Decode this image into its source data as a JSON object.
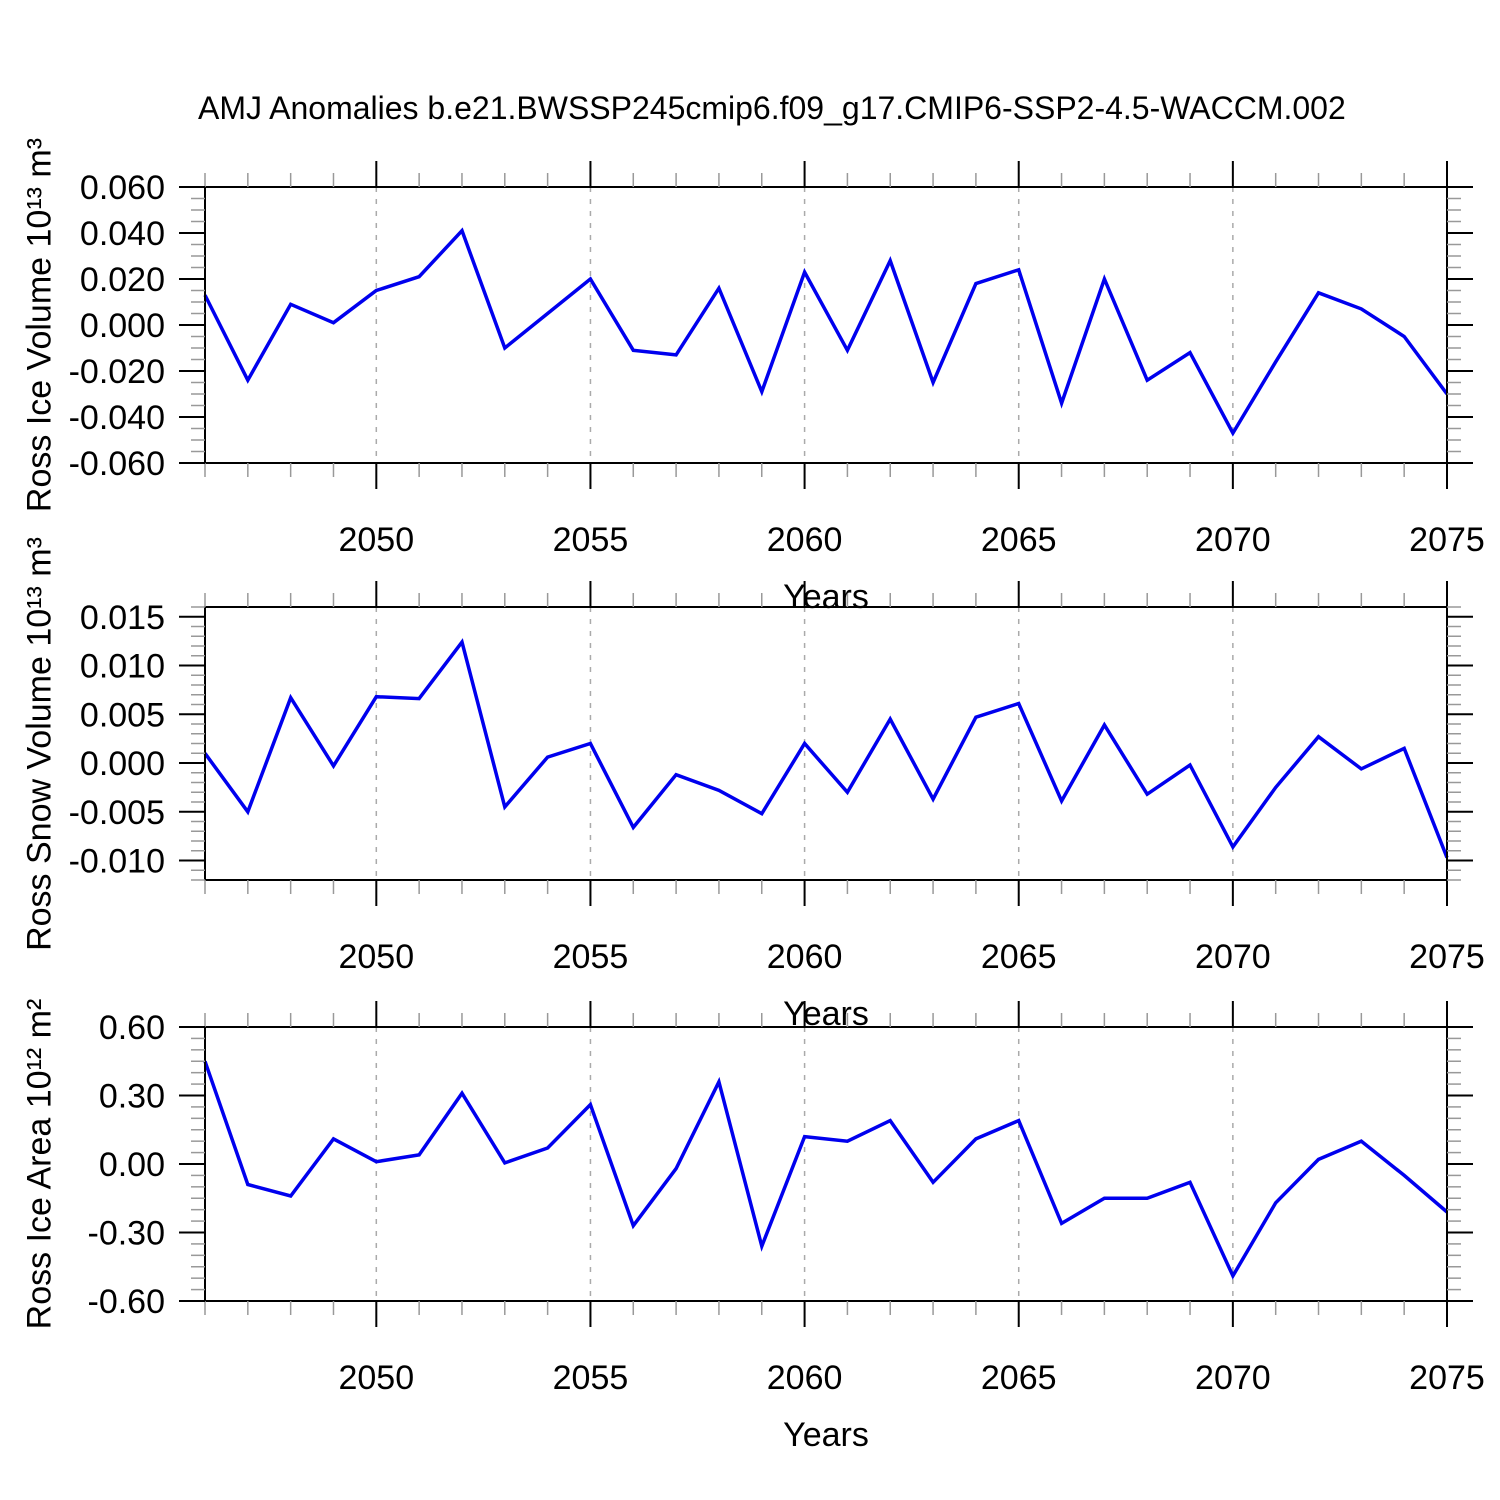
{
  "title": "AMJ Anomalies b.e21.BWSSP245cmip6.f09_g17.CMIP6-SSP2-4.5-WACCM.002",
  "colors": {
    "line": "#0000ee",
    "axis": "#000000",
    "major_tick": "#000000",
    "minor_tick": "#999999",
    "gridline": "#aaaaaa",
    "background": "#ffffff",
    "text": "#000000"
  },
  "chart_data": [
    {
      "type": "line",
      "ylabel": "Ross Ice Volume 10¹³ m³",
      "xlabel": "Years",
      "x": [
        2046,
        2047,
        2048,
        2049,
        2050,
        2051,
        2052,
        2053,
        2054,
        2055,
        2056,
        2057,
        2058,
        2059,
        2060,
        2061,
        2062,
        2063,
        2064,
        2065,
        2066,
        2067,
        2068,
        2069,
        2070,
        2071,
        2072,
        2073,
        2074,
        2075
      ],
      "series": [
        {
          "name": "Ross Ice Volume",
          "values": [
            0.013,
            -0.024,
            0.009,
            0.001,
            0.015,
            0.021,
            0.041,
            -0.01,
            0.005,
            0.02,
            -0.011,
            -0.013,
            0.016,
            -0.029,
            0.023,
            -0.011,
            0.028,
            -0.025,
            0.018,
            0.024,
            -0.034,
            0.02,
            -0.024,
            -0.012,
            -0.047,
            -0.016,
            0.014,
            0.007,
            -0.005,
            -0.03
          ]
        }
      ],
      "xlim": [
        2046,
        2075
      ],
      "ylim": [
        -0.06,
        0.06
      ],
      "xticks": [
        2050,
        2055,
        2060,
        2065,
        2070,
        2075
      ],
      "xtick_labels": [
        "2050",
        "2055",
        "2060",
        "2065",
        "2070",
        "2075"
      ],
      "xtick_minor_step": 1,
      "ytick_values": [
        0.06,
        0.04,
        0.02,
        0.0,
        -0.02,
        -0.04,
        -0.06
      ],
      "ytick_labels": [
        "0.060",
        "0.040",
        "0.020",
        "0.000",
        "-0.020",
        "-0.040",
        "-0.060"
      ],
      "ytick_minor_step": 0.005,
      "gridlines_x": [
        2050,
        2055,
        2060,
        2065,
        2070
      ],
      "grid": "vertical-dashed",
      "legend": "none"
    },
    {
      "type": "line",
      "ylabel": "Ross Snow Volume 10¹³ m³",
      "xlabel": "Years",
      "x": [
        2046,
        2047,
        2048,
        2049,
        2050,
        2051,
        2052,
        2053,
        2054,
        2055,
        2056,
        2057,
        2058,
        2059,
        2060,
        2061,
        2062,
        2063,
        2064,
        2065,
        2066,
        2067,
        2068,
        2069,
        2070,
        2071,
        2072,
        2073,
        2074,
        2075
      ],
      "series": [
        {
          "name": "Ross Snow Volume",
          "values": [
            0.001,
            -0.005,
            0.0067,
            -0.0003,
            0.0068,
            0.0066,
            0.0124,
            -0.0045,
            0.0006,
            0.002,
            -0.0066,
            -0.0012,
            -0.0028,
            -0.0052,
            0.002,
            -0.003,
            0.0045,
            -0.0037,
            0.0047,
            0.0061,
            -0.0039,
            0.0039,
            -0.0032,
            -0.0002,
            -0.0086,
            -0.0025,
            0.0027,
            -0.0006,
            0.0015,
            -0.0097
          ]
        }
      ],
      "xlim": [
        2046,
        2075
      ],
      "ylim": [
        -0.012,
        0.016
      ],
      "xticks": [
        2050,
        2055,
        2060,
        2065,
        2070,
        2075
      ],
      "xtick_labels": [
        "2050",
        "2055",
        "2060",
        "2065",
        "2070",
        "2075"
      ],
      "xtick_minor_step": 1,
      "ytick_values": [
        0.015,
        0.01,
        0.005,
        0.0,
        -0.005,
        -0.01
      ],
      "ytick_labels": [
        "0.015",
        "0.010",
        "0.005",
        "0.000",
        "-0.005",
        "-0.010"
      ],
      "ytick_minor_step": 0.001,
      "gridlines_x": [
        2050,
        2055,
        2060,
        2065,
        2070
      ],
      "grid": "vertical-dashed",
      "legend": "none"
    },
    {
      "type": "line",
      "ylabel": "Ross Ice Area 10¹² m²",
      "xlabel": "Years",
      "x": [
        2046,
        2047,
        2048,
        2049,
        2050,
        2051,
        2052,
        2053,
        2054,
        2055,
        2056,
        2057,
        2058,
        2059,
        2060,
        2061,
        2062,
        2063,
        2064,
        2065,
        2066,
        2067,
        2068,
        2069,
        2070,
        2071,
        2072,
        2073,
        2074,
        2075
      ],
      "series": [
        {
          "name": "Ross Ice Area",
          "values": [
            0.45,
            -0.09,
            -0.14,
            0.11,
            0.01,
            0.04,
            0.31,
            0.005,
            0.07,
            0.26,
            -0.27,
            -0.02,
            0.36,
            -0.36,
            0.12,
            0.1,
            0.19,
            -0.08,
            0.11,
            0.19,
            -0.26,
            -0.15,
            -0.15,
            -0.08,
            -0.49,
            -0.17,
            0.02,
            0.1,
            -0.05,
            -0.21
          ]
        }
      ],
      "xlim": [
        2046,
        2075
      ],
      "ylim": [
        -0.6,
        0.6
      ],
      "xticks": [
        2050,
        2055,
        2060,
        2065,
        2070,
        2075
      ],
      "xtick_labels": [
        "2050",
        "2055",
        "2060",
        "2065",
        "2070",
        "2075"
      ],
      "xtick_minor_step": 1,
      "ytick_values": [
        0.6,
        0.3,
        0.0,
        -0.3,
        -0.6
      ],
      "ytick_labels": [
        "0.60",
        "0.30",
        "0.00",
        "-0.30",
        "-0.60"
      ],
      "ytick_minor_step": 0.05,
      "gridlines_x": [
        2050,
        2055,
        2060,
        2065,
        2070
      ],
      "grid": "vertical-dashed",
      "legend": "none"
    }
  ]
}
